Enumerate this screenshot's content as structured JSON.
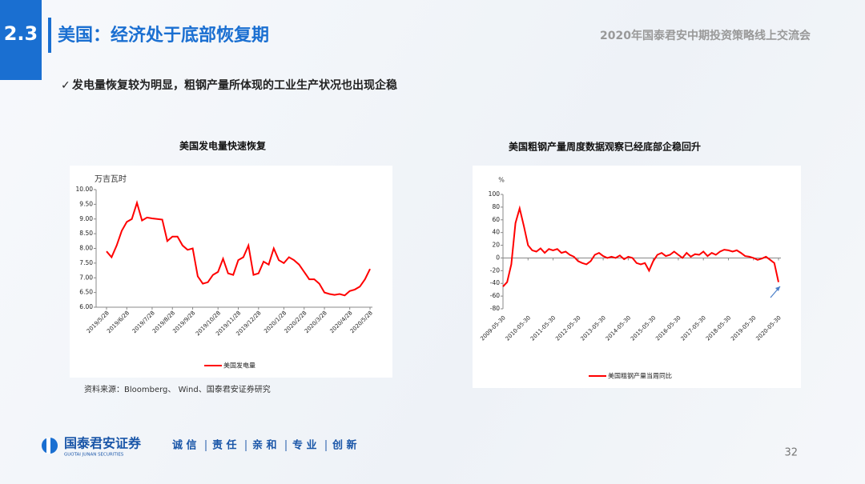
{
  "header": {
    "section": "2.3",
    "title": "美国：经济处于底部恢复期",
    "event": "2020年国泰君安中期投资策略线上交流会"
  },
  "subtitle": "发电量恢复较为明显，粗钢产量所体现的工业生产状况也出现企稳",
  "chart_data": [
    {
      "type": "line",
      "title": "美国发电量快速恢复",
      "y_label": "万吉瓦时",
      "categories": [
        "2019/5/28",
        null,
        null,
        null,
        "2019/6/28",
        null,
        null,
        null,
        null,
        "2019/7/28",
        null,
        null,
        null,
        "2019/8/28",
        null,
        null,
        null,
        "2019/9/28",
        null,
        null,
        null,
        null,
        "2019/10/28",
        null,
        null,
        null,
        "2019/11/28",
        null,
        null,
        null,
        "2019/12/28",
        null,
        null,
        null,
        null,
        "2020/1/28",
        null,
        null,
        null,
        "2020/2/28",
        null,
        null,
        null,
        "2020/3/28",
        null,
        null,
        null,
        null,
        "2020/4/28",
        null,
        null,
        null,
        "2020/5/28"
      ],
      "series": [
        {
          "name": "美国发电量",
          "color": "#ff0000",
          "values": [
            7.9,
            7.7,
            8.1,
            8.6,
            8.9,
            9.0,
            9.55,
            8.95,
            9.05,
            9.02,
            9.0,
            8.98,
            8.25,
            8.4,
            8.4,
            8.1,
            7.95,
            8.0,
            7.05,
            6.8,
            6.85,
            7.1,
            7.2,
            7.65,
            7.15,
            7.1,
            7.6,
            7.7,
            8.1,
            7.1,
            7.15,
            7.55,
            7.45,
            8.0,
            7.6,
            7.5,
            7.7,
            7.6,
            7.45,
            7.2,
            6.95,
            6.95,
            6.8,
            6.5,
            6.45,
            6.42,
            6.45,
            6.4,
            6.55,
            6.6,
            6.7,
            6.95,
            7.3
          ]
        }
      ],
      "ylim": [
        6,
        10
      ],
      "yticks": [
        {
          "value": 6,
          "label": "6.00"
        },
        {
          "value": 6.5,
          "label": "6.50"
        },
        {
          "value": 7,
          "label": "7.00"
        },
        {
          "value": 7.5,
          "label": "7.50"
        },
        {
          "value": 8,
          "label": "8.00"
        },
        {
          "value": 8.5,
          "label": "8.50"
        },
        {
          "value": 9,
          "label": "9.00"
        },
        {
          "value": 9.5,
          "label": "9.50"
        },
        {
          "value": 10,
          "label": "10.00"
        }
      ],
      "legend": "bottom"
    },
    {
      "type": "line",
      "title": "美国粗钢产量周度数据观察已经底部企稳回升",
      "y_label": "%",
      "categories": [
        "2009-05-30",
        null,
        null,
        null,
        null,
        null,
        "2010-05-30",
        null,
        null,
        null,
        null,
        null,
        "2011-05-30",
        null,
        null,
        null,
        null,
        null,
        "2012-05-30",
        null,
        null,
        null,
        null,
        null,
        "2013-05-30",
        null,
        null,
        null,
        null,
        null,
        "2014-05-30",
        null,
        null,
        null,
        null,
        null,
        "2015-05-30",
        null,
        null,
        null,
        null,
        null,
        "2016-05-30",
        null,
        null,
        null,
        null,
        null,
        "2017-05-30",
        null,
        null,
        null,
        null,
        null,
        "2018-05-30",
        null,
        null,
        null,
        null,
        null,
        "2019-05-30",
        null,
        null,
        null,
        null,
        null,
        "2020-05-30"
      ],
      "series": [
        {
          "name": "美国粗钢产量当周同比",
          "color": "#ff0000",
          "values": [
            -45,
            -38,
            -10,
            55,
            78,
            50,
            20,
            12,
            10,
            15,
            8,
            14,
            12,
            14,
            8,
            10,
            5,
            2,
            -5,
            -8,
            -10,
            -5,
            5,
            8,
            3,
            0,
            2,
            0,
            4,
            -2,
            2,
            0,
            -8,
            -10,
            -8,
            -20,
            -5,
            5,
            8,
            3,
            5,
            10,
            5,
            0,
            8,
            2,
            6,
            5,
            10,
            3,
            8,
            5,
            10,
            13,
            12,
            10,
            12,
            8,
            3,
            2,
            0,
            -3,
            -1,
            2,
            -3,
            -8,
            -38
          ]
        }
      ],
      "ylim": [
        -80,
        100
      ],
      "yticks": [
        -80,
        -60,
        -40,
        -20,
        0,
        20,
        40,
        60,
        80,
        100
      ],
      "legend": "bottom"
    }
  ],
  "source": "资料来源：Bloomberg、 Wind、国泰君安证券研究",
  "footer": {
    "company": "国泰君安证券",
    "company_en": "GUOTAI JUNAN SECURITIES",
    "slogan": [
      "诚 信",
      "责 任",
      "亲 和",
      "专 业",
      "创 新"
    ],
    "page": 32
  }
}
